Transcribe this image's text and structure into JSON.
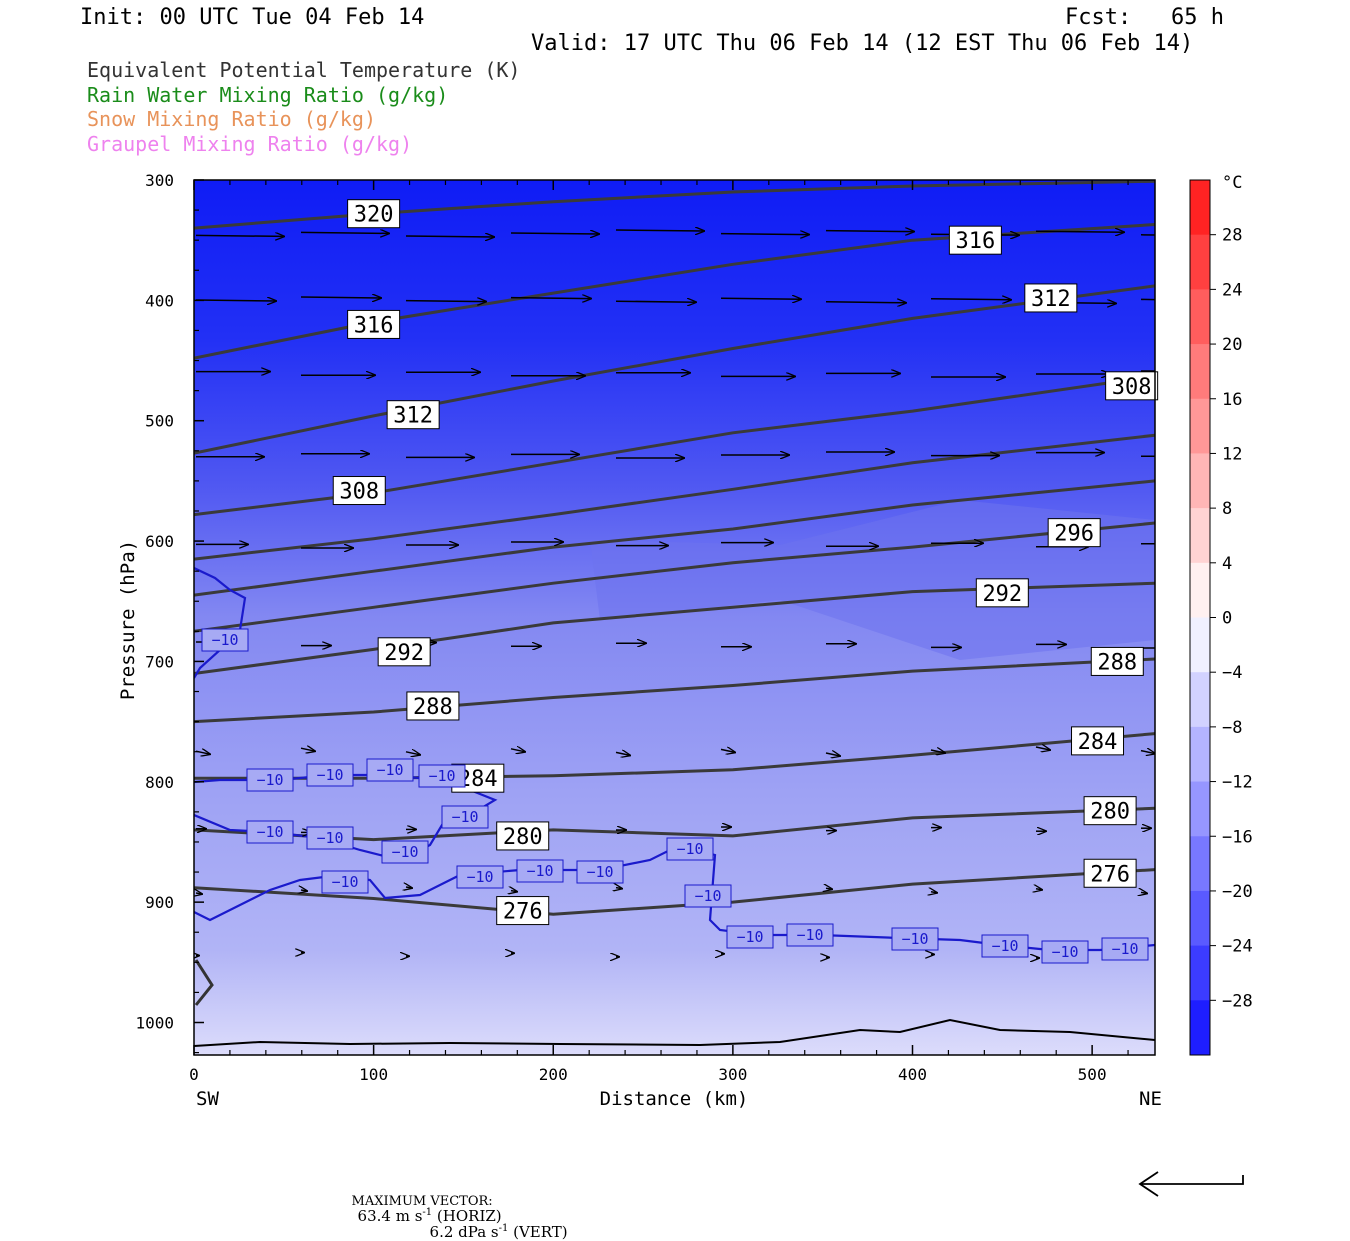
{
  "header": {
    "init": "Init: 00 UTC Tue 04 Feb 14",
    "fcst": "Fcst:   65 h",
    "valid": "Valid: 17 UTC Thu 06 Feb 14 (12 EST Thu 06 Feb 14)"
  },
  "legend": [
    {
      "text": "Equivalent Potential Temperature (K)",
      "color": "#333333"
    },
    {
      "text": "Rain Water Mixing Ratio (g/kg)",
      "color": "#1a8c1a"
    },
    {
      "text": "Snow Mixing Ratio (g/kg)",
      "color": "#e8935a"
    },
    {
      "text": "Graupel Mixing Ratio (g/kg)",
      "color": "#ee82ee"
    }
  ],
  "footer": {
    "max_vector_label": "MAXIMUM VECTOR:",
    "horiz": "63.4 m s",
    "horiz_suffix": " (HORIZ)",
    "vert": "6.2 dPa s",
    "vert_suffix": " (VERT)",
    "exponent": "-1"
  },
  "chart_data": {
    "type": "heatmap",
    "description_of_fields": "temperature shading (°C), equivalent potential temperature contours (K), -10 °C isotherm, wind vectors",
    "xlabel": "Distance (km)",
    "ylabel": "Pressure (hPa)",
    "x_end_labels": {
      "left": "SW",
      "right": "NE"
    },
    "xlim": [
      0,
      535
    ],
    "ylim": [
      1027,
      300
    ],
    "x_ticks": [
      0,
      100,
      200,
      300,
      400,
      500
    ],
    "y_ticks": [
      300,
      400,
      500,
      600,
      700,
      800,
      900,
      1000
    ],
    "colorbar": {
      "unit": "°C",
      "min": -32,
      "max": 32,
      "tick_values": [
        28,
        24,
        20,
        16,
        12,
        8,
        4,
        0,
        -4,
        -8,
        -12,
        -16,
        -20,
        -24,
        -28
      ],
      "tick_labels": [
        "28",
        "24",
        "20",
        "16",
        "12",
        "8",
        "4",
        "0",
        "−4",
        "−8",
        "−12",
        "−16",
        "−20",
        "−24",
        "−28"
      ]
    },
    "theta_e_contours": [
      {
        "value": 320,
        "label": "320",
        "points": [
          [
            0,
            340
          ],
          [
            100,
            328
          ],
          [
            200,
            318
          ],
          [
            300,
            310
          ],
          [
            400,
            305
          ],
          [
            535,
            301
          ]
        ],
        "label_at": [
          100,
          328
        ]
      },
      {
        "value": 316,
        "label": "316",
        "points": [
          [
            0,
            448
          ],
          [
            100,
            418
          ],
          [
            200,
            394
          ],
          [
            300,
            370
          ],
          [
            400,
            350
          ],
          [
            535,
            337
          ]
        ],
        "labels_at": [
          [
            100,
            420
          ],
          [
            435,
            350
          ]
        ]
      },
      {
        "value": 312,
        "label": "312",
        "points": [
          [
            0,
            527
          ],
          [
            100,
            496
          ],
          [
            200,
            467
          ],
          [
            300,
            440
          ],
          [
            400,
            415
          ],
          [
            535,
            388
          ]
        ],
        "labels_at": [
          [
            122,
            495
          ],
          [
            477,
            398
          ]
        ]
      },
      {
        "value": 308,
        "label": "308",
        "points": [
          [
            0,
            578
          ],
          [
            100,
            560
          ],
          [
            200,
            535
          ],
          [
            300,
            510
          ],
          [
            400,
            492
          ],
          [
            535,
            463
          ]
        ],
        "labels_at": [
          [
            92,
            558
          ],
          [
            522,
            471
          ]
        ]
      },
      {
        "value": 304,
        "points": [
          [
            0,
            615
          ],
          [
            100,
            598
          ],
          [
            200,
            578
          ],
          [
            300,
            557
          ],
          [
            400,
            535
          ],
          [
            535,
            512
          ]
        ]
      },
      {
        "value": 300,
        "points": [
          [
            0,
            645
          ],
          [
            100,
            625
          ],
          [
            200,
            605
          ],
          [
            300,
            590
          ],
          [
            400,
            570
          ],
          [
            535,
            550
          ]
        ]
      },
      {
        "value": 296,
        "label": "296",
        "points": [
          [
            0,
            675
          ],
          [
            100,
            655
          ],
          [
            200,
            635
          ],
          [
            300,
            618
          ],
          [
            400,
            605
          ],
          [
            535,
            585
          ]
        ],
        "label_at": [
          490,
          593
        ]
      },
      {
        "value": 292,
        "label": "292",
        "points": [
          [
            0,
            710
          ],
          [
            100,
            690
          ],
          [
            200,
            668
          ],
          [
            300,
            655
          ],
          [
            400,
            642
          ],
          [
            535,
            635
          ]
        ],
        "labels_at": [
          [
            117,
            692
          ],
          [
            450,
            643
          ]
        ]
      },
      {
        "value": 288,
        "label": "288",
        "points": [
          [
            0,
            750
          ],
          [
            100,
            742
          ],
          [
            200,
            730
          ],
          [
            300,
            720
          ],
          [
            400,
            708
          ],
          [
            535,
            698
          ]
        ],
        "labels_at": [
          [
            133,
            737
          ],
          [
            514,
            700
          ]
        ]
      },
      {
        "value": 284,
        "label": "284",
        "points": [
          [
            0,
            797
          ],
          [
            100,
            797
          ],
          [
            200,
            795
          ],
          [
            300,
            790
          ],
          [
            400,
            778
          ],
          [
            535,
            760
          ]
        ],
        "labels_at": [
          [
            158,
            797
          ],
          [
            503,
            766
          ]
        ]
      },
      {
        "value": 280,
        "label": "280",
        "points": [
          [
            0,
            840
          ],
          [
            100,
            848
          ],
          [
            200,
            840
          ],
          [
            300,
            845
          ],
          [
            400,
            830
          ],
          [
            535,
            822
          ]
        ],
        "labels_at": [
          [
            183,
            845
          ],
          [
            510,
            824
          ]
        ]
      },
      {
        "value": 276,
        "label": "276",
        "points": [
          [
            0,
            888
          ],
          [
            100,
            897
          ],
          [
            200,
            910
          ],
          [
            300,
            900
          ],
          [
            400,
            885
          ],
          [
            535,
            873
          ]
        ],
        "labels_at": [
          [
            183,
            907
          ],
          [
            510,
            876
          ]
        ]
      }
    ],
    "isotherm_minus10": {
      "label": "−10",
      "label_count": 23
    },
    "max_vector": {
      "horiz": 63.4,
      "horiz_unit": "m s-1",
      "vert": 6.2,
      "vert_unit": "dPa s-1"
    }
  }
}
